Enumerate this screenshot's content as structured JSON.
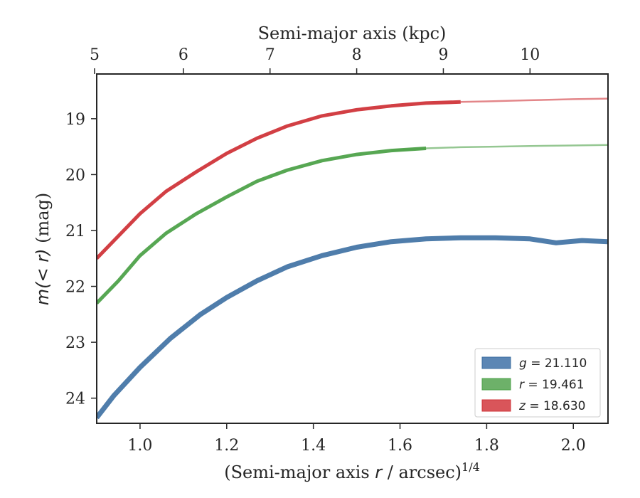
{
  "chart_data": {
    "type": "line",
    "top_axis": {
      "label": "Semi-major axis (kpc)",
      "ticks": [
        5,
        6,
        7,
        8,
        9,
        10
      ],
      "tick_positions_bottom_units": [
        0.895,
        1.1,
        1.3,
        1.5,
        1.7,
        1.9
      ]
    },
    "x": {
      "label": "(Semi-major axis r / arcsec)",
      "label_prefix": "(Semi-major axis ",
      "label_var": "r",
      "label_suffix": " / arcsec)",
      "label_exp": "1/4",
      "lim": [
        0.9,
        2.08
      ],
      "ticks": [
        1.0,
        1.2,
        1.4,
        1.6,
        1.8,
        2.0
      ],
      "tick_labels": [
        "1.0",
        "1.2",
        "1.4",
        "1.6",
        "1.8",
        "2.0"
      ]
    },
    "y": {
      "label": "m(< r) (mag)",
      "label_italic": "m(< r)",
      "label_suffix": " (mag)",
      "lim": [
        24.45,
        18.2
      ],
      "inverted": true,
      "ticks": [
        19,
        20,
        21,
        22,
        23,
        24
      ],
      "tick_labels": [
        "19",
        "20",
        "21",
        "22",
        "23",
        "24"
      ]
    },
    "legend": {
      "placement": "lower-right"
    },
    "series": [
      {
        "name": "g = 21.110",
        "legend_var": "g",
        "legend_value": "= 21.110",
        "color": "#3c6fa2",
        "band": "#5b86b4",
        "x": [
          0.9,
          0.94,
          1.0,
          1.07,
          1.14,
          1.2,
          1.27,
          1.34,
          1.42,
          1.5,
          1.58,
          1.66,
          1.74,
          1.82,
          1.9,
          1.96,
          2.02,
          2.08
        ],
        "y": [
          24.35,
          23.95,
          23.45,
          22.93,
          22.5,
          22.2,
          21.9,
          21.65,
          21.45,
          21.3,
          21.2,
          21.15,
          21.13,
          21.13,
          21.15,
          21.22,
          21.18,
          21.2
        ],
        "extended": false
      },
      {
        "name": "r = 19.461",
        "legend_var": "r",
        "legend_value": "= 19.461",
        "color": "#4ea24a",
        "band": "#6db169",
        "x": [
          0.9,
          0.95,
          1.0,
          1.06,
          1.13,
          1.2,
          1.27,
          1.34,
          1.42,
          1.5,
          1.58,
          1.66,
          1.74,
          1.82,
          1.9,
          1.98,
          2.08
        ],
        "y": [
          22.3,
          21.9,
          21.45,
          21.05,
          20.7,
          20.4,
          20.12,
          19.92,
          19.75,
          19.64,
          19.57,
          19.53,
          19.51,
          19.5,
          19.49,
          19.48,
          19.47
        ],
        "solid_until": 1.66
      },
      {
        "name": "z = 18.630",
        "legend_var": "z",
        "legend_value": "= 18.630",
        "color": "#d0353a",
        "band": "#d9555a",
        "x": [
          0.9,
          0.95,
          1.0,
          1.06,
          1.13,
          1.2,
          1.27,
          1.34,
          1.42,
          1.5,
          1.58,
          1.66,
          1.74,
          1.8,
          1.9,
          2.0,
          2.08
        ],
        "y": [
          21.5,
          21.1,
          20.7,
          20.3,
          19.95,
          19.62,
          19.35,
          19.13,
          18.95,
          18.84,
          18.77,
          18.72,
          18.7,
          18.69,
          18.67,
          18.65,
          18.64
        ],
        "solid_until": 1.79
      }
    ]
  }
}
